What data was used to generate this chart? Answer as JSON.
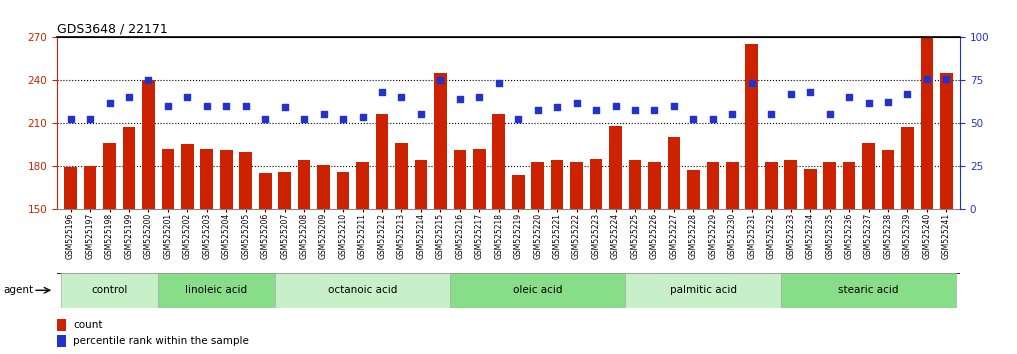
{
  "title": "GDS3648 / 22171",
  "samples": [
    "GSM525196",
    "GSM525197",
    "GSM525198",
    "GSM525199",
    "GSM525200",
    "GSM525201",
    "GSM525202",
    "GSM525203",
    "GSM525204",
    "GSM525205",
    "GSM525206",
    "GSM525207",
    "GSM525208",
    "GSM525209",
    "GSM525210",
    "GSM525211",
    "GSM525212",
    "GSM525213",
    "GSM525214",
    "GSM525215",
    "GSM525216",
    "GSM525217",
    "GSM525218",
    "GSM525219",
    "GSM525220",
    "GSM525221",
    "GSM525222",
    "GSM525223",
    "GSM525224",
    "GSM525225",
    "GSM525226",
    "GSM525227",
    "GSM525228",
    "GSM525229",
    "GSM525230",
    "GSM525231",
    "GSM525232",
    "GSM525233",
    "GSM525234",
    "GSM525235",
    "GSM525236",
    "GSM525237",
    "GSM525238",
    "GSM525239",
    "GSM525240",
    "GSM525241"
  ],
  "bar_values": [
    179,
    180,
    196,
    207,
    240,
    192,
    195,
    192,
    191,
    190,
    175,
    176,
    184,
    181,
    176,
    183,
    216,
    196,
    184,
    245,
    191,
    192,
    216,
    174,
    183,
    184,
    183,
    185,
    208,
    184,
    183,
    200,
    177,
    183,
    183,
    265,
    183,
    184,
    178,
    183,
    183,
    196,
    191,
    207,
    270,
    245
  ],
  "percentile_values": [
    213,
    213,
    224,
    228,
    240,
    222,
    228,
    222,
    222,
    222,
    213,
    221,
    213,
    216,
    213,
    214,
    232,
    228,
    216,
    240,
    227,
    228,
    238,
    213,
    219,
    221,
    224,
    219,
    222,
    219,
    219,
    222,
    213,
    213,
    216,
    238,
    216,
    230,
    232,
    216,
    228,
    224,
    225,
    230,
    241,
    241
  ],
  "groups": [
    {
      "label": "control",
      "start": 0,
      "end": 5
    },
    {
      "label": "linoleic acid",
      "start": 5,
      "end": 11
    },
    {
      "label": "octanoic acid",
      "start": 11,
      "end": 20
    },
    {
      "label": "oleic acid",
      "start": 20,
      "end": 29
    },
    {
      "label": "palmitic acid",
      "start": 29,
      "end": 37
    },
    {
      "label": "stearic acid",
      "start": 37,
      "end": 46
    }
  ],
  "group_colors": [
    "#c8f0c8",
    "#88dd88",
    "#c8f0c8",
    "#88dd88",
    "#c8f0c8",
    "#88dd88"
  ],
  "ylim_left": [
    150,
    270
  ],
  "ylim_right": [
    0,
    100
  ],
  "yticks_left": [
    150,
    180,
    210,
    240,
    270
  ],
  "yticks_right": [
    0,
    25,
    50,
    75,
    100
  ],
  "grid_lines": [
    180,
    210,
    240
  ],
  "bar_color": "#cc2200",
  "scatter_color": "#2233cc",
  "bg_color": "#ffffff",
  "left_tick_color": "#cc2200",
  "right_tick_color": "#2233cc",
  "title_fontsize": 9,
  "tick_fontsize": 7.5,
  "xlabel_fontsize": 5.5,
  "group_fontsize": 7.5,
  "legend_fontsize": 7.5,
  "agent_label": "agent"
}
